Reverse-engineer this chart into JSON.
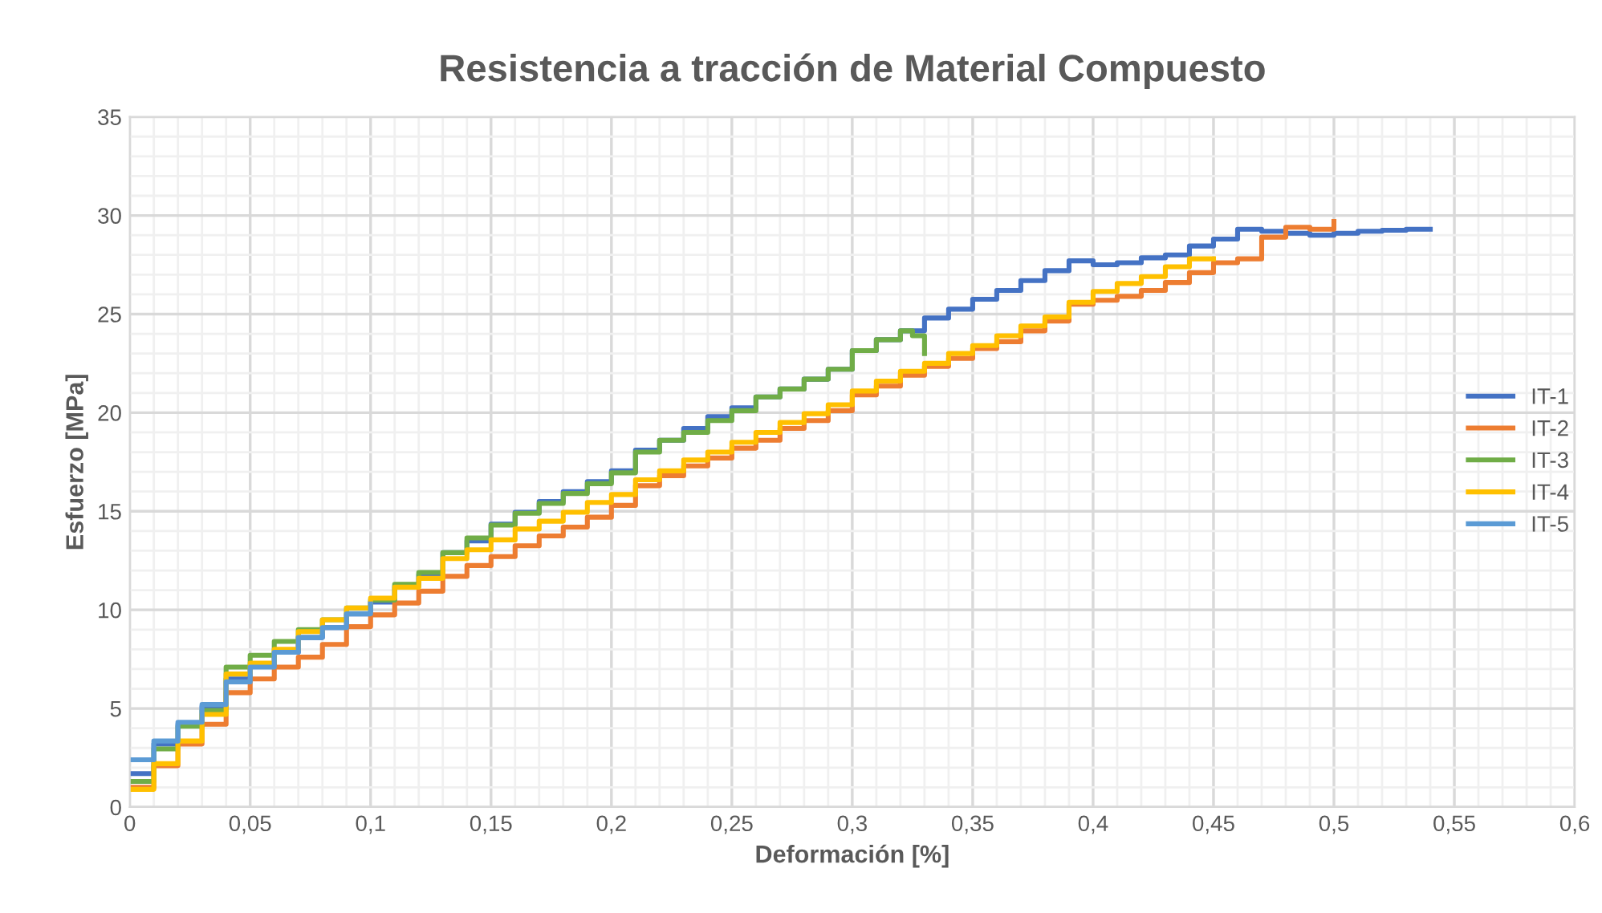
{
  "chart_data": {
    "type": "step",
    "title": "Resistencia a tracción de Material Compuesto",
    "xlabel": "Deformación [%]",
    "ylabel": "Esfuerzo [MPa]",
    "xlim": [
      0,
      0.6
    ],
    "ylim": [
      0,
      35
    ],
    "xticks": [
      0,
      {
        "value": 0.05,
        "label": "0,05"
      },
      {
        "value": 0.1,
        "label": "0,1"
      },
      {
        "value": 0.15,
        "label": "0,15"
      },
      {
        "value": 0.2,
        "label": "0,2"
      },
      {
        "value": 0.25,
        "label": "0,25"
      },
      {
        "value": 0.3,
        "label": "0,3"
      },
      {
        "value": 0.35,
        "label": "0,35"
      },
      {
        "value": 0.4,
        "label": "0,4"
      },
      {
        "value": 0.45,
        "label": "0,45"
      },
      {
        "value": 0.5,
        "label": "0,5"
      },
      {
        "value": 0.55,
        "label": "0,55"
      },
      {
        "value": 0.6,
        "label": "0,6"
      }
    ],
    "yticks": [
      0,
      5,
      10,
      15,
      20,
      25,
      30,
      35
    ],
    "grid": true,
    "legend": "right",
    "marker": "none",
    "line_style": "solid",
    "series": [
      {
        "name": "IT-1",
        "color": "#4472c4",
        "x": [
          0,
          0.01,
          0.02,
          0.03,
          0.04,
          0.05,
          0.06,
          0.07,
          0.08,
          0.09,
          0.1,
          0.11,
          0.12,
          0.13,
          0.14,
          0.15,
          0.16,
          0.17,
          0.18,
          0.19,
          0.2,
          0.21,
          0.22,
          0.23,
          0.24,
          0.25,
          0.26,
          0.27,
          0.28,
          0.29,
          0.3,
          0.31,
          0.32,
          0.33,
          0.34,
          0.35,
          0.36,
          0.37,
          0.38,
          0.39,
          0.4,
          0.41,
          0.42,
          0.43,
          0.44,
          0.45,
          0.46,
          0.47,
          0.48,
          0.49,
          0.5,
          0.51,
          0.52,
          0.53,
          0.54
        ],
        "values": [
          1.7,
          3.2,
          4.2,
          5.1,
          6.5,
          7.15,
          7.85,
          8.6,
          9.1,
          9.8,
          10.4,
          11.2,
          11.8,
          12.9,
          13.5,
          14.35,
          14.95,
          15.5,
          16.0,
          16.5,
          17.05,
          18.1,
          18.6,
          19.2,
          19.8,
          20.25,
          20.8,
          21.2,
          21.7,
          22.2,
          23.15,
          23.7,
          24.15,
          24.8,
          25.25,
          25.75,
          26.2,
          26.7,
          27.2,
          27.7,
          27.5,
          27.6,
          27.85,
          28.0,
          28.45,
          28.8,
          29.3,
          29.2,
          29.1,
          29.0,
          29.1,
          29.2,
          29.25,
          29.3,
          29.3
        ]
      },
      {
        "name": "IT-2",
        "color": "#ed7d31",
        "x": [
          0,
          0.01,
          0.02,
          0.03,
          0.04,
          0.05,
          0.06,
          0.07,
          0.08,
          0.09,
          0.1,
          0.11,
          0.12,
          0.13,
          0.14,
          0.15,
          0.16,
          0.17,
          0.18,
          0.19,
          0.2,
          0.21,
          0.22,
          0.23,
          0.24,
          0.25,
          0.26,
          0.27,
          0.28,
          0.29,
          0.3,
          0.31,
          0.32,
          0.33,
          0.34,
          0.35,
          0.36,
          0.37,
          0.38,
          0.39,
          0.4,
          0.41,
          0.42,
          0.43,
          0.44,
          0.45,
          0.46,
          0.47,
          0.48,
          0.49,
          0.5
        ],
        "values": [
          1.0,
          2.1,
          3.2,
          4.2,
          5.8,
          6.5,
          7.1,
          7.6,
          8.25,
          9.15,
          9.75,
          10.35,
          10.95,
          11.7,
          12.25,
          12.7,
          13.25,
          13.75,
          14.2,
          14.7,
          15.3,
          16.3,
          16.8,
          17.3,
          17.7,
          18.2,
          18.6,
          19.2,
          19.6,
          20.1,
          20.9,
          21.35,
          21.9,
          22.35,
          22.75,
          23.25,
          23.6,
          24.15,
          24.65,
          25.5,
          25.7,
          25.9,
          26.2,
          26.6,
          27.1,
          27.6,
          27.8,
          28.9,
          29.4,
          29.3,
          29.7
        ]
      },
      {
        "name": "IT-3",
        "color": "#70ad47",
        "x": [
          0,
          0.01,
          0.02,
          0.03,
          0.04,
          0.05,
          0.06,
          0.07,
          0.08,
          0.09,
          0.1,
          0.11,
          0.12,
          0.13,
          0.14,
          0.15,
          0.16,
          0.17,
          0.18,
          0.19,
          0.2,
          0.21,
          0.22,
          0.23,
          0.24,
          0.25,
          0.26,
          0.27,
          0.28,
          0.29,
          0.3,
          0.31,
          0.32,
          0.325,
          0.33
        ],
        "values": [
          1.3,
          2.95,
          4.1,
          4.9,
          7.1,
          7.7,
          8.4,
          9.0,
          9.5,
          10.1,
          10.5,
          11.3,
          11.9,
          12.9,
          13.65,
          14.3,
          14.9,
          15.4,
          15.9,
          16.4,
          16.95,
          18.0,
          18.6,
          19.0,
          19.6,
          20.1,
          20.8,
          21.2,
          21.7,
          22.2,
          23.15,
          23.7,
          24.15,
          23.9,
          23.0
        ]
      },
      {
        "name": "IT-4",
        "color": "#ffc000",
        "x": [
          0,
          0.01,
          0.02,
          0.03,
          0.04,
          0.05,
          0.06,
          0.07,
          0.08,
          0.09,
          0.1,
          0.11,
          0.12,
          0.13,
          0.14,
          0.15,
          0.16,
          0.17,
          0.18,
          0.19,
          0.2,
          0.21,
          0.22,
          0.23,
          0.24,
          0.25,
          0.26,
          0.27,
          0.28,
          0.29,
          0.3,
          0.31,
          0.32,
          0.33,
          0.34,
          0.35,
          0.36,
          0.37,
          0.38,
          0.39,
          0.4,
          0.41,
          0.42,
          0.43,
          0.44,
          0.45
        ],
        "values": [
          0.9,
          2.2,
          3.35,
          4.7,
          6.75,
          7.3,
          8.0,
          8.9,
          9.5,
          10.1,
          10.6,
          11.15,
          11.6,
          12.6,
          13.05,
          13.55,
          14.1,
          14.5,
          14.95,
          15.45,
          15.85,
          16.6,
          17.05,
          17.6,
          18.0,
          18.5,
          19.0,
          19.5,
          19.95,
          20.4,
          21.1,
          21.6,
          22.1,
          22.5,
          23.0,
          23.4,
          23.9,
          24.4,
          24.85,
          25.6,
          26.15,
          26.55,
          26.9,
          27.4,
          27.8,
          27.8
        ]
      },
      {
        "name": "IT-5",
        "color": "#5b9bd5",
        "x": [
          0,
          0.01,
          0.02,
          0.03,
          0.04,
          0.05,
          0.06,
          0.07,
          0.08,
          0.09,
          0.1
        ],
        "values": [
          2.4,
          3.35,
          4.3,
          5.2,
          6.35,
          7.1,
          7.85,
          8.6,
          9.1,
          9.8,
          10.3
        ]
      }
    ]
  }
}
